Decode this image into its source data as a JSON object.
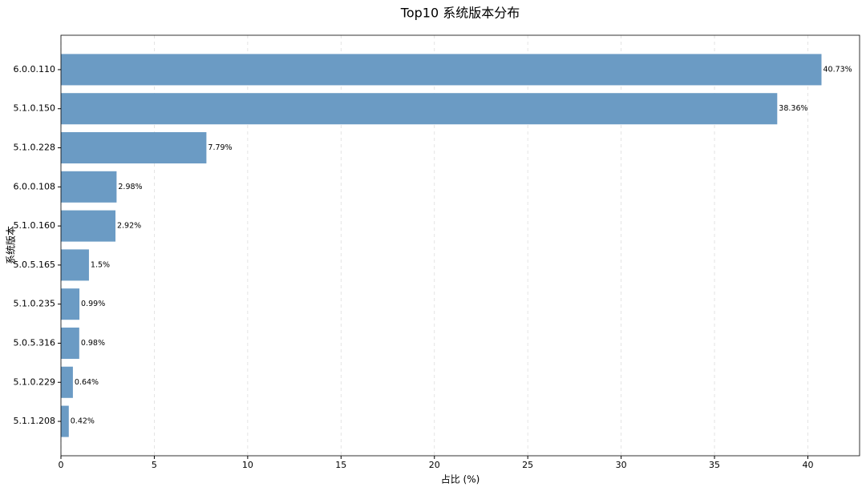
{
  "chart_data": {
    "type": "barh",
    "title": "Top10 系统版本分布",
    "xlabel": "占比 (%)",
    "ylabel": "系统版本",
    "categories": [
      "6.0.0.110",
      "5.1.0.150",
      "5.1.0.228",
      "6.0.0.108",
      "5.1.0.160",
      "5.0.5.165",
      "5.1.0.235",
      "5.0.5.316",
      "5.1.0.229",
      "5.1.1.208"
    ],
    "values": [
      40.73,
      38.36,
      7.79,
      2.98,
      2.92,
      1.5,
      0.99,
      0.98,
      0.64,
      0.42
    ],
    "value_labels": [
      "40.73%",
      "38.36%",
      "7.79%",
      "2.98%",
      "2.92%",
      "1.5%",
      "0.99%",
      "0.98%",
      "0.64%",
      "0.42%"
    ],
    "color": "#6b9bc4",
    "xlim": [
      0,
      42.77
    ],
    "xticks": [
      0,
      5,
      10,
      15,
      20,
      25,
      30,
      35,
      40
    ],
    "grid": true
  }
}
